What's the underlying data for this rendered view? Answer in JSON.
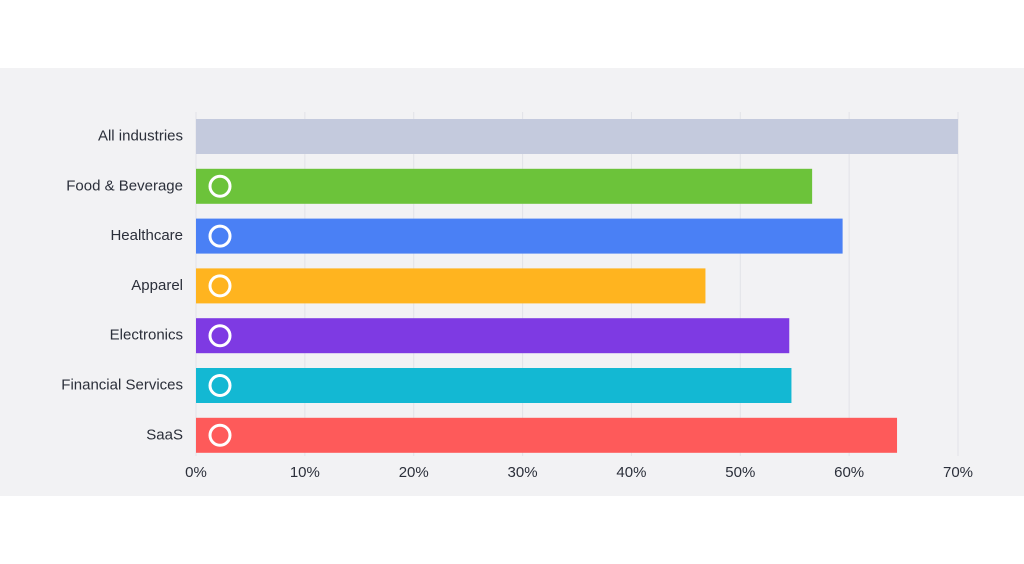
{
  "chart_data": {
    "type": "barh",
    "categories": [
      "All industries",
      "Food & Beverage",
      "Healthcare",
      "Apparel",
      "Electronics",
      "Financial Services",
      "SaaS"
    ],
    "values": [
      70,
      56.6,
      59.4,
      46.8,
      54.5,
      54.7,
      64.4
    ],
    "colors": [
      "#c4cadd",
      "#6cc33a",
      "#4a80f5",
      "#ffb41f",
      "#7e3ae3",
      "#13b8d3",
      "#fe5a5a"
    ],
    "xlim": [
      0,
      70
    ],
    "xticks": [
      {
        "value": 0,
        "label": "0%"
      },
      {
        "value": 10,
        "label": "10%"
      },
      {
        "value": 20,
        "label": "20%"
      },
      {
        "value": 30,
        "label": "30%"
      },
      {
        "value": 40,
        "label": "40%"
      },
      {
        "value": 50,
        "label": "50%"
      },
      {
        "value": 60,
        "label": "60%"
      },
      {
        "value": 70,
        "label": "70%"
      }
    ],
    "grid": true
  }
}
